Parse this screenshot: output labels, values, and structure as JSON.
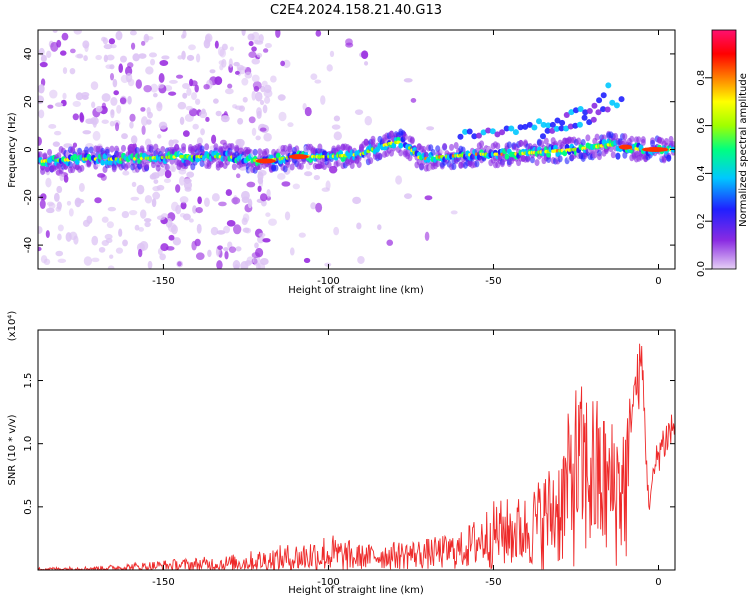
{
  "title": "C2E4.2024.158.21.40.G13",
  "chart_data": [
    {
      "type": "heatmap",
      "xlabel": "Height of straight line (km)",
      "ylabel": "Frequency (Hz)",
      "xlim": [
        -188,
        5
      ],
      "ylim": [
        -50,
        50
      ],
      "xticks": [
        -150,
        -100,
        -50,
        0
      ],
      "yticks": [
        -40,
        -20,
        0,
        20,
        40
      ],
      "xtick_labels": [
        "-150",
        "-100",
        "-50",
        "0"
      ],
      "ytick_labels": [
        "-40",
        "-20",
        "0",
        "20",
        "40"
      ],
      "colorbar": {
        "label": "Normalized spectral amplitude",
        "range": [
          0,
          1
        ],
        "ticks": [
          0.0,
          0.2,
          0.4,
          0.6,
          0.8
        ],
        "tick_labels": [
          "0.0",
          "0.2",
          "0.4",
          "0.6",
          "0.8"
        ],
        "colors": [
          "#e6d0f5",
          "#8a2be2",
          "#2020ff",
          "#00c8ff",
          "#00ff80",
          "#a0ff00",
          "#ffff00",
          "#ff8000",
          "#ff0000",
          "#ff1070"
        ]
      },
      "ridge": {
        "x": [
          -188,
          -175,
          -160,
          -145,
          -130,
          -120,
          -110,
          -100,
          -90,
          -85,
          -80,
          -77,
          -72,
          -65,
          -55,
          -45,
          -35,
          -25,
          -15,
          -5,
          5
        ],
        "y": [
          -5,
          -4,
          -4,
          -3,
          -3,
          -5,
          -3,
          -3,
          -2,
          1,
          3,
          3,
          -4,
          -3,
          -2,
          -2,
          -1,
          0,
          2,
          0,
          0
        ]
      },
      "upper_branches": [
        {
          "x": [
            -60,
            -45,
            -30,
            -20,
            -15
          ],
          "y": [
            6,
            8,
            12,
            18,
            27
          ]
        },
        {
          "x": [
            -35,
            -25,
            -18,
            -10
          ],
          "y": [
            6,
            10,
            15,
            22
          ]
        }
      ]
    },
    {
      "type": "line",
      "xlabel": "Height of straight line (km)",
      "ylabel": "SNR (10 * v/v)",
      "yscale_label": "(x10⁴)",
      "xlim": [
        -188,
        5
      ],
      "ylim": [
        0,
        1.9
      ],
      "xticks": [
        -150,
        -100,
        -50,
        0
      ],
      "yticks": [
        0.5,
        1.0,
        1.5
      ],
      "xtick_labels": [
        "-150",
        "-100",
        "-50",
        "0"
      ],
      "ytick_labels": [
        "0.5",
        "1.0",
        "1.5"
      ],
      "color": "#ee2a2a",
      "envelope": {
        "x": [
          -188,
          -170,
          -150,
          -130,
          -110,
          -100,
          -90,
          -70,
          -60,
          -50,
          -40,
          -30,
          -25,
          -20,
          -15,
          -10,
          -5,
          -3,
          0,
          5
        ],
        "y": [
          0.02,
          0.03,
          0.08,
          0.12,
          0.22,
          0.3,
          0.2,
          0.25,
          0.3,
          0.55,
          0.6,
          0.95,
          1.5,
          1.45,
          1.2,
          1.3,
          1.9,
          0.6,
          1.1,
          1.35
        ]
      }
    }
  ]
}
